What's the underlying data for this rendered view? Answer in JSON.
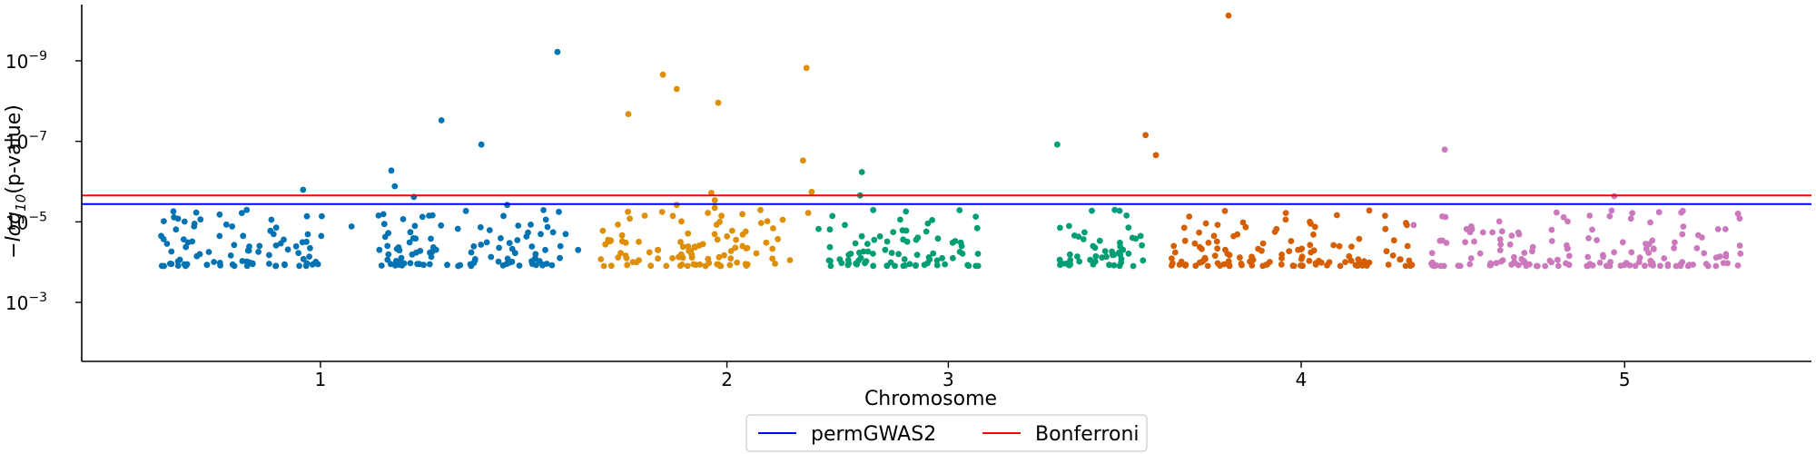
{
  "chart_data": {
    "type": "scatter",
    "title": "",
    "xlabel": "Chromosome",
    "ylabel_prefix": "−log",
    "ylabel_sub": "10",
    "ylabel_suffix": "(p-value)",
    "y_scale": "log",
    "y_reversed": true,
    "ylim": [
      0.00013,
      1e-10
    ],
    "xlim": [
      0,
      1.0
    ],
    "x_ticks": [
      {
        "label": "1",
        "pos": 0.138
      },
      {
        "label": "2",
        "pos": 0.373
      },
      {
        "label": "3",
        "pos": 0.501
      },
      {
        "label": "4",
        "pos": 0.705
      },
      {
        "label": "5",
        "pos": 0.892
      }
    ],
    "y_ticks": [
      {
        "label": "10",
        "exp": "−9",
        "value": 1e-09
      },
      {
        "label": "10",
        "exp": "−7",
        "value": 1e-07
      },
      {
        "label": "10",
        "exp": "−5",
        "value": 1e-05
      },
      {
        "label": "10",
        "exp": "−3",
        "value": 0.001
      }
    ],
    "thresholds": [
      {
        "name": "permGWAS2",
        "value": 3.6e-06,
        "color": "#0000ff"
      },
      {
        "name": "Bonferroni",
        "value": 2.2e-06,
        "color": "#ff0000"
      }
    ],
    "legend_position": "bottom-center",
    "spines": "left-bottom",
    "series": [
      {
        "chromosome": "1",
        "color": "#0173b2",
        "range": [
          0.0,
          0.288
        ],
        "segments": [
          [
            0.045,
            0.14
          ],
          [
            0.17,
            0.28
          ]
        ],
        "points": [
          [
            0.053,
            5.5e-06
          ],
          [
            0.128,
            1.6e-06
          ],
          [
            0.156,
            1.3e-05
          ],
          [
            0.208,
            3e-08
          ],
          [
            0.179,
            5.3e-07
          ],
          [
            0.181,
            1.3e-06
          ],
          [
            0.192,
            2.4e-06
          ],
          [
            0.197,
            7.5e-06
          ],
          [
            0.231,
            1.2e-07
          ],
          [
            0.246,
            3.8e-06
          ],
          [
            0.275,
            6e-10
          ],
          [
            0.065,
            1.3e-05
          ],
          [
            0.087,
            1.3e-05
          ],
          [
            0.19,
            1.8e-05
          ],
          [
            0.268,
            5e-05
          ],
          [
            0.287,
            5e-05
          ]
        ]
      },
      {
        "chromosome": "2",
        "color": "#de8f05",
        "range": [
          0.284,
          0.424
        ],
        "segments": [
          [
            0.3,
            0.41
          ]
        ],
        "points": [
          [
            0.316,
            2.1e-08
          ],
          [
            0.336,
            2.2e-09
          ],
          [
            0.344,
            5e-09
          ],
          [
            0.368,
            1.1e-08
          ],
          [
            0.419,
            1.5e-09
          ],
          [
            0.417,
            3e-07
          ],
          [
            0.422,
            1.8e-06
          ],
          [
            0.364,
            1.9e-06
          ],
          [
            0.366,
            2.9e-06
          ],
          [
            0.366,
            4.5e-06
          ],
          [
            0.362,
            6e-06
          ],
          [
            0.42,
            6e-06
          ],
          [
            0.344,
            3.8e-06
          ]
        ]
      },
      {
        "chromosome": "3",
        "color": "#029e73",
        "range": [
          0.42,
          0.622
        ],
        "segments": [
          [
            0.43,
            0.52
          ],
          [
            0.56,
            0.615
          ]
        ],
        "points": [
          [
            0.451,
            5.8e-07
          ],
          [
            0.564,
            1.2e-07
          ],
          [
            0.584,
            5.3e-06
          ],
          [
            0.6,
            5.3e-06
          ],
          [
            0.426,
            1.5e-05
          ],
          [
            0.45,
            2.2e-06
          ],
          [
            0.495,
            2.6e-05
          ],
          [
            0.505,
            3e-05
          ]
        ]
      },
      {
        "chromosome": "4",
        "color": "#d55e00",
        "range": [
          0.615,
          0.78
        ],
        "segments": [
          [
            0.63,
            0.77
          ]
        ],
        "points": [
          [
            0.663,
            7.5e-11
          ],
          [
            0.615,
            7e-08
          ],
          [
            0.621,
            2.2e-07
          ],
          [
            0.71,
            1e-05
          ]
        ]
      },
      {
        "chromosome": "5",
        "color": "#cc78bc",
        "range": [
          0.77,
          1.0
        ],
        "segments": [
          [
            0.78,
            0.86
          ],
          [
            0.87,
            0.96
          ]
        ],
        "points": [
          [
            0.788,
            1.6e-07
          ],
          [
            0.886,
            2.3e-06
          ],
          [
            0.77,
            1.2e-05
          ],
          [
            0.85,
            3e-05
          ],
          [
            0.86,
            7e-05
          ]
        ]
      }
    ]
  }
}
